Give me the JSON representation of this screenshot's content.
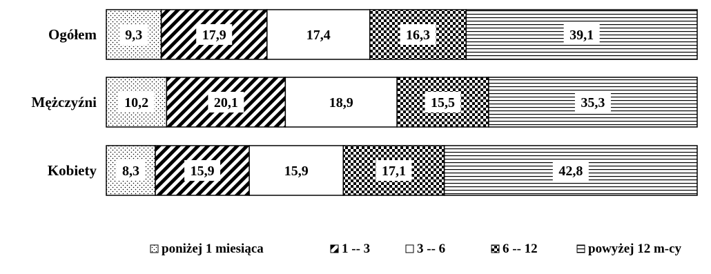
{
  "chart_data": {
    "type": "bar",
    "stacked": true,
    "orientation": "horizontal",
    "percent_stacked": true,
    "categories": [
      "Ogółem",
      "Mężczyźni",
      "Kobiety"
    ],
    "series": [
      {
        "name": "poniżej 1 miesiąca",
        "pattern": "dots",
        "values": [
          9.3,
          10.2,
          8.3
        ],
        "labels": [
          "9,3",
          "10,2",
          "8,3"
        ]
      },
      {
        "name": "1 -- 3",
        "pattern": "diagonal-stripes",
        "values": [
          17.9,
          20.1,
          15.9
        ],
        "labels": [
          "17,9",
          "20,1",
          "15,9"
        ]
      },
      {
        "name": "3 -- 6",
        "pattern": "solid-white",
        "values": [
          17.4,
          18.9,
          15.9
        ],
        "labels": [
          "17,4",
          "18,9",
          "15,9"
        ]
      },
      {
        "name": "6 -- 12",
        "pattern": "checkerboard",
        "values": [
          16.3,
          15.5,
          17.1
        ],
        "labels": [
          "16,3",
          "15,5",
          "17,1"
        ]
      },
      {
        "name": "powyżej 12 m-cy",
        "pattern": "horizontal-lines",
        "values": [
          39.1,
          35.3,
          42.8
        ],
        "labels": [
          "39,1",
          "35,3",
          "42,8"
        ]
      }
    ],
    "legend_position": "bottom-right",
    "grid": false,
    "colors": {
      "stroke": "#000000",
      "fill": "#ffffff"
    }
  }
}
